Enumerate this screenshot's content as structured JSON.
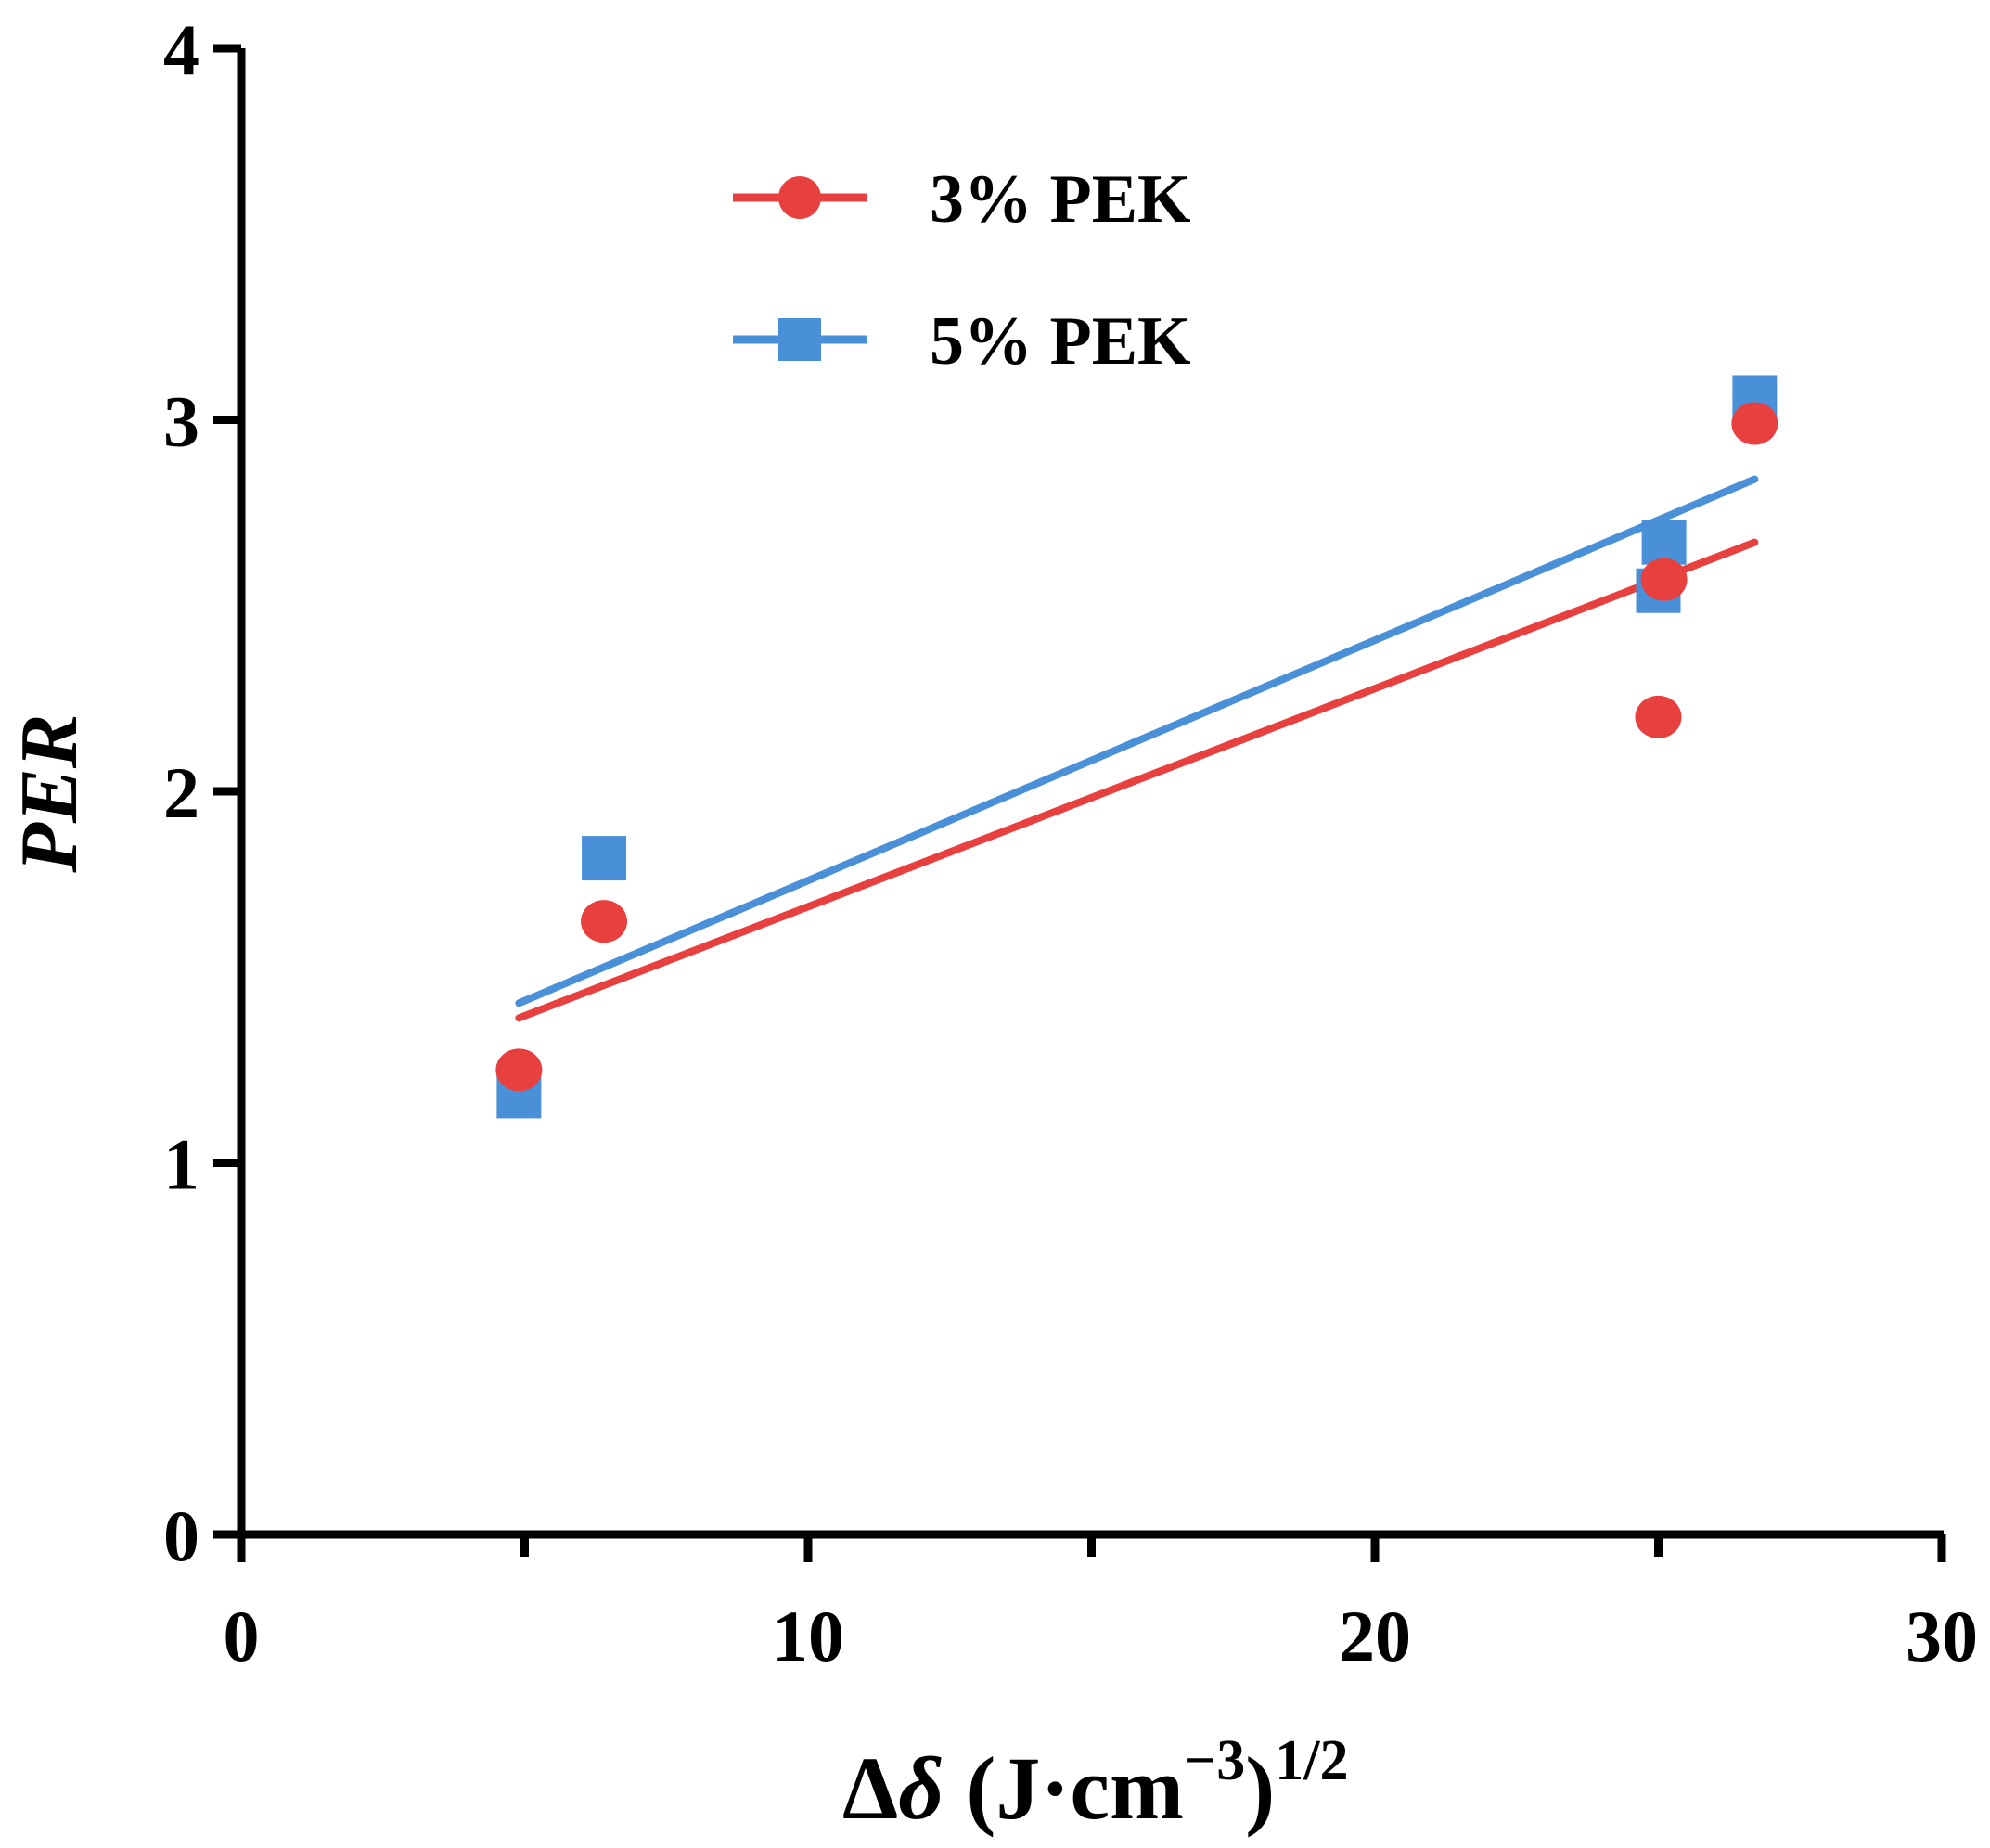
{
  "chart_data": {
    "type": "scatter",
    "title": "",
    "xlabel": {
      "prefix": "Δ",
      "symbol": "δ",
      "unit_open": " (J·cm",
      "unit_exp": "−3",
      "unit_close": ")",
      "power": "1/2"
    },
    "ylabel": "PER",
    "xlim": [
      0,
      30
    ],
    "ylim": [
      0,
      4
    ],
    "xticks": [
      0,
      10,
      20,
      30
    ],
    "xtick_labels": [
      "0",
      "10",
      "20",
      "30"
    ],
    "xminor_ticks": [
      5,
      15,
      25
    ],
    "yticks": [
      0,
      1,
      2,
      3,
      4
    ],
    "ytick_labels": [
      "0",
      "1",
      "2",
      "3",
      "4"
    ],
    "legend_position": "top-center",
    "grid": false,
    "series": [
      {
        "name": "3% PEK",
        "color": "#e8403f",
        "marker": "circle",
        "points": [
          [
            4.9,
            1.25
          ],
          [
            6.4,
            1.65
          ],
          [
            25.1,
            2.57
          ],
          [
            25.0,
            2.2
          ],
          [
            26.7,
            2.99
          ]
        ],
        "fit": [
          [
            4.9,
            1.39
          ],
          [
            26.7,
            2.67
          ]
        ]
      },
      {
        "name": "5% PEK",
        "color": "#4a90d9",
        "marker": "square",
        "points": [
          [
            4.9,
            1.18
          ],
          [
            6.4,
            1.82
          ],
          [
            25.1,
            2.67
          ],
          [
            25.0,
            2.54
          ],
          [
            26.7,
            3.06
          ]
        ],
        "fit": [
          [
            4.9,
            1.43
          ],
          [
            26.7,
            2.84
          ]
        ]
      }
    ]
  }
}
